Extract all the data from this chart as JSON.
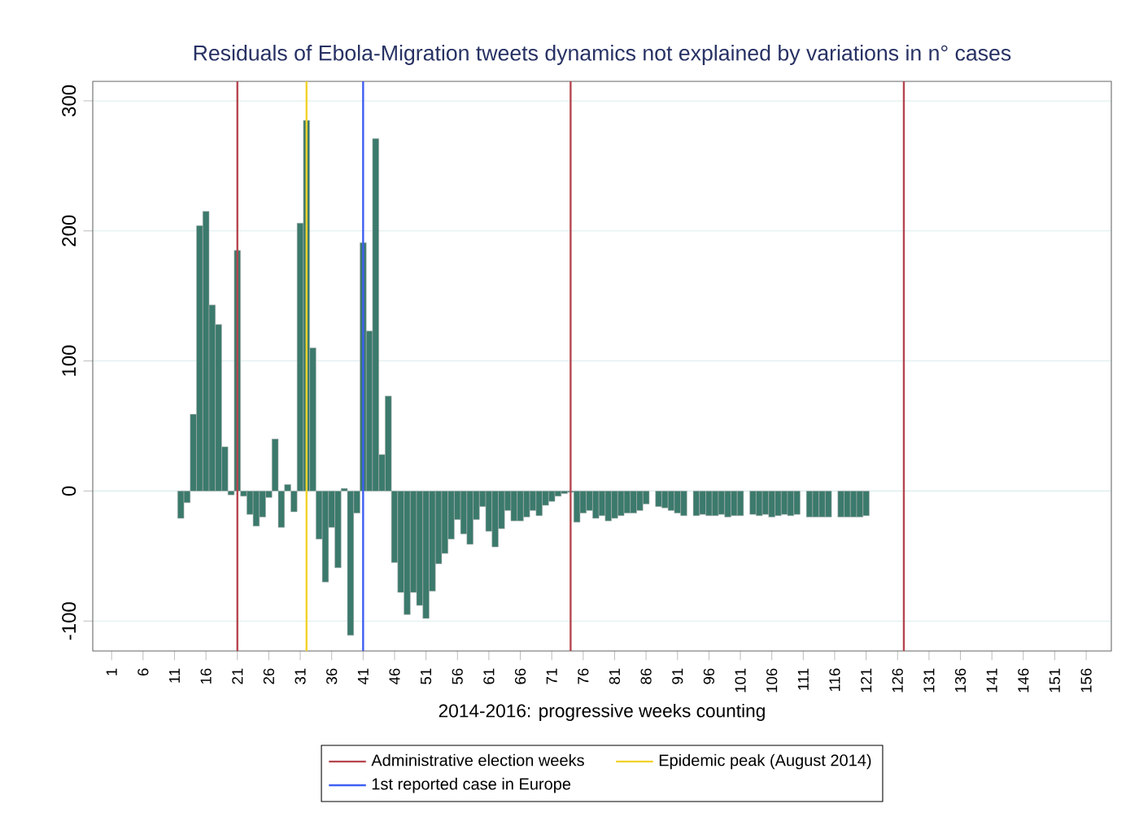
{
  "chart_data": {
    "type": "bar",
    "title": "Residuals of Ebola-Migration tweets dynamics not explained by variations in n° cases",
    "xlabel": "2014-2016: progressive weeks counting",
    "x": [
      12,
      13,
      14,
      15,
      16,
      17,
      18,
      19,
      20,
      21,
      22,
      23,
      24,
      25,
      26,
      27,
      28,
      29,
      30,
      31,
      32,
      33,
      34,
      35,
      36,
      37,
      38,
      39,
      40,
      41,
      42,
      43,
      44,
      45,
      46,
      47,
      48,
      49,
      50,
      51,
      52,
      53,
      54,
      55,
      56,
      57,
      58,
      59,
      60,
      61,
      62,
      63,
      64,
      65,
      66,
      67,
      68,
      69,
      70,
      71,
      72,
      73,
      74,
      75,
      76,
      77,
      78,
      79,
      80,
      81,
      82,
      83,
      84,
      85,
      86,
      87,
      88,
      89,
      90,
      91,
      92,
      93,
      94,
      95,
      96,
      97,
      98,
      99,
      100,
      101,
      102,
      103,
      104,
      105,
      106,
      107,
      108,
      109,
      110,
      111,
      112,
      113,
      114,
      115,
      116,
      117,
      118,
      119,
      120,
      121
    ],
    "values": [
      -21,
      -9,
      59,
      204,
      215,
      143,
      128,
      34,
      -3,
      185,
      -4,
      -18,
      -27,
      -20,
      -5,
      40,
      -28,
      5,
      -16,
      206,
      285,
      110,
      -37,
      -70,
      -28,
      -59,
      2,
      -111,
      -17,
      191,
      123,
      271,
      28,
      73,
      -55,
      -78,
      -95,
      -78,
      -88,
      -98,
      -77,
      -56,
      -48,
      -37,
      -22,
      -33,
      -41,
      -22,
      -12,
      -31,
      -43,
      -29,
      -15,
      -23,
      -23,
      -20,
      -15,
      -19,
      -11,
      -8,
      -4,
      -2,
      -1,
      -24,
      -17,
      -15,
      -21,
      -19,
      -23,
      -21,
      -19,
      -17,
      -17,
      -15,
      -10,
      null,
      -12,
      -13,
      -15,
      -17,
      -19,
      null,
      -19,
      -18,
      -19,
      -19,
      -18,
      -20,
      -19,
      -19,
      null,
      -18,
      -19,
      -18,
      -20,
      -19,
      -18,
      -19,
      -18,
      null,
      -20,
      -20,
      -20,
      -20,
      null,
      -20,
      -20,
      -20,
      -20,
      -19
    ],
    "color": "#3b7a6c",
    "xlim": [
      -2,
      160
    ],
    "ylim": [
      -123,
      315
    ],
    "xticks": [
      1,
      6,
      11,
      16,
      21,
      26,
      31,
      36,
      41,
      46,
      51,
      56,
      61,
      66,
      71,
      76,
      81,
      86,
      91,
      96,
      101,
      106,
      111,
      116,
      121,
      126,
      131,
      136,
      141,
      146,
      151,
      156
    ],
    "yticks": [
      -100,
      0,
      100,
      200,
      300
    ],
    "grid": "y",
    "legend": "bottom",
    "ref_lines": [
      {
        "axis": "x",
        "value": 21,
        "label": "Administrative election weeks",
        "color": "#b5464f"
      },
      {
        "axis": "x",
        "value": 32,
        "label": "Epidemic peak (August 2014)",
        "color": "#f2d22a"
      },
      {
        "axis": "x",
        "value": 41,
        "label": "1st reported case in Europe",
        "color": "#3f5ff2"
      },
      {
        "axis": "x",
        "value": 74,
        "label": null,
        "color": "#b5464f"
      },
      {
        "axis": "x",
        "value": 127,
        "label": null,
        "color": "#b5464f"
      }
    ]
  }
}
